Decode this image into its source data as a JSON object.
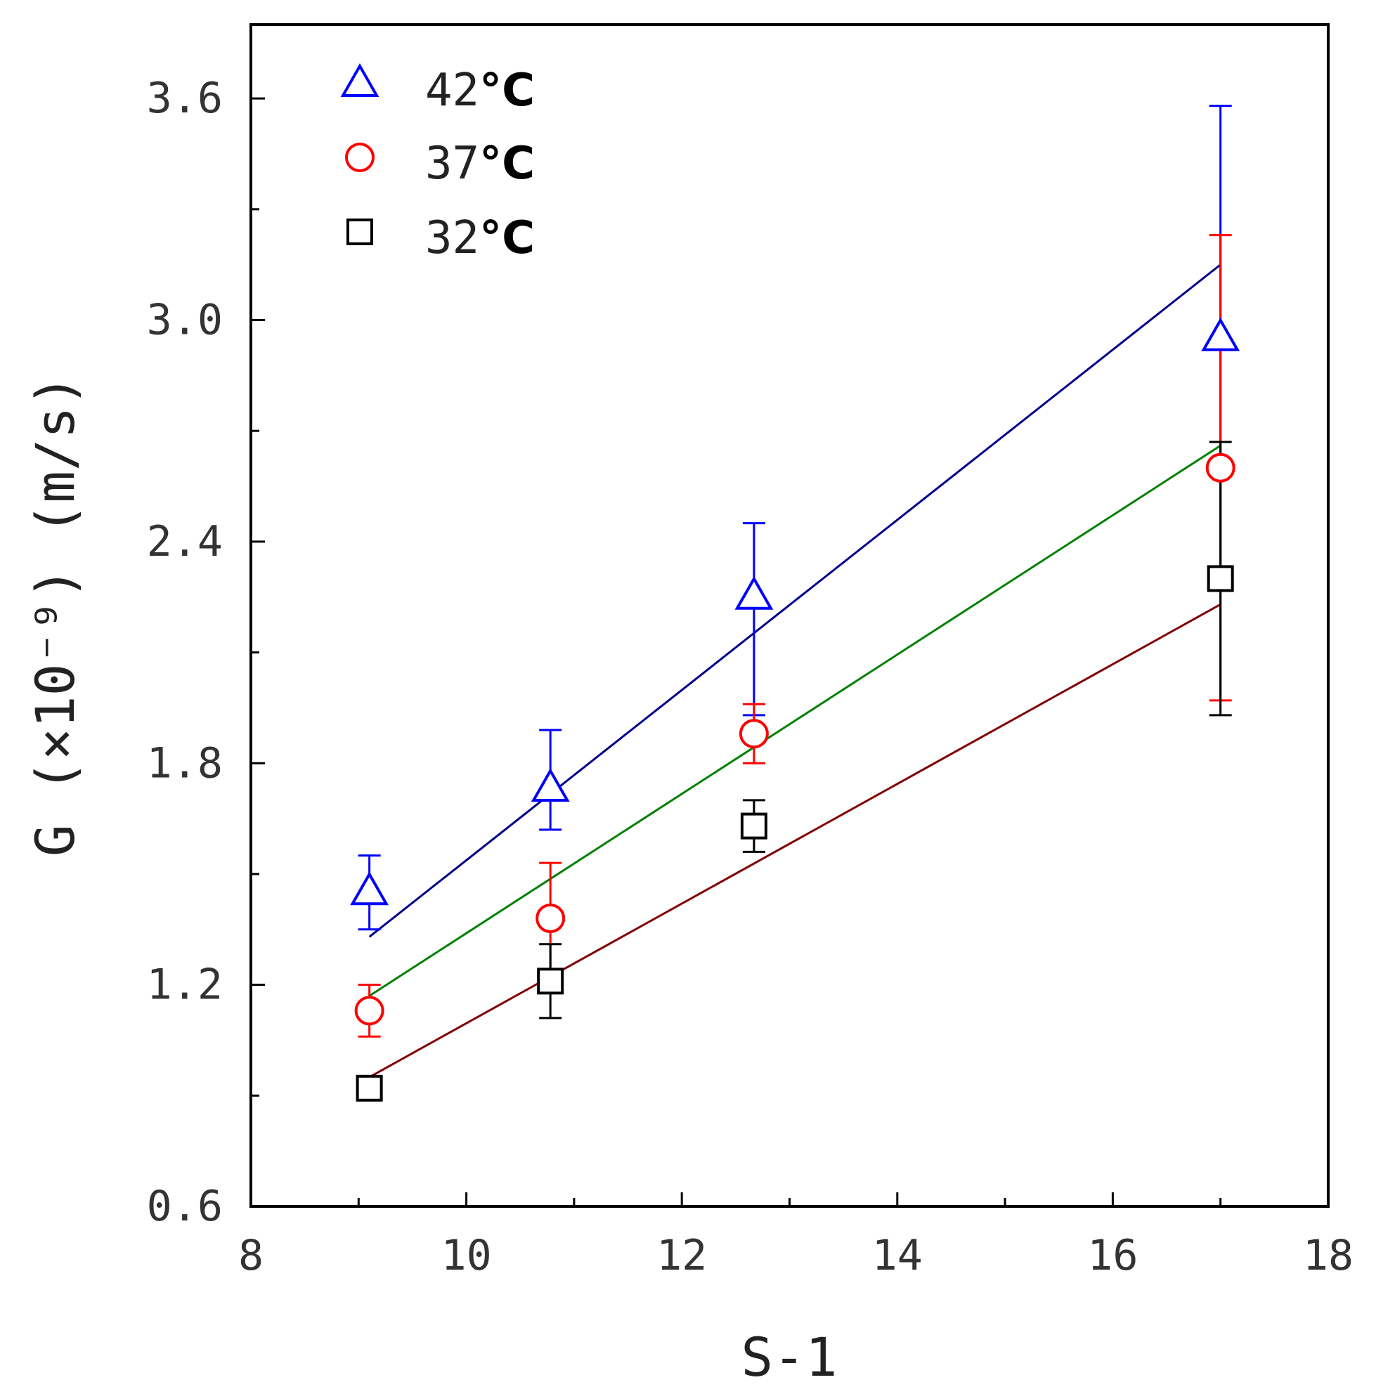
{
  "chart_data": {
    "type": "scatter",
    "xlabel": "S-1",
    "ylabel": "G  (×10⁻⁹) (m/s)",
    "xlim": [
      8,
      18
    ],
    "ylim": [
      0.6,
      3.8
    ],
    "x_ticks": [
      "8",
      "10",
      "12",
      "14",
      "16",
      "18"
    ],
    "y_ticks": [
      "0.6",
      "1.2",
      "1.8",
      "2.4",
      "3.0",
      "3.6"
    ],
    "legend_position": "top-left",
    "grid": false,
    "series": [
      {
        "name": "42°C",
        "marker": "triangle",
        "color": "#0000ff",
        "line_color": "#00008b",
        "points": [
          {
            "x": 9.1,
            "y": 1.45,
            "err_low": 0.1,
            "err_high": 0.1
          },
          {
            "x": 10.78,
            "y": 1.73,
            "err_low": 0.11,
            "err_high": 0.16
          },
          {
            "x": 12.67,
            "y": 2.25,
            "err_low": 0.32,
            "err_high": 0.2
          },
          {
            "x": 17.0,
            "y": 2.95,
            "err_low": 0.63,
            "err_high": 0.63
          }
        ],
        "fit": [
          [
            9.1,
            1.33
          ],
          [
            17.0,
            3.15
          ]
        ]
      },
      {
        "name": "37°C",
        "marker": "circle",
        "color": "#ff0000",
        "line_color": "#008000",
        "points": [
          {
            "x": 9.1,
            "y": 1.13,
            "err_low": 0.07,
            "err_high": 0.07
          },
          {
            "x": 10.78,
            "y": 1.38,
            "err_low": 0.15,
            "err_high": 0.15
          },
          {
            "x": 12.67,
            "y": 1.88,
            "err_low": 0.08,
            "err_high": 0.08
          },
          {
            "x": 17.0,
            "y": 2.6,
            "err_low": 0.63,
            "err_high": 0.63
          }
        ],
        "fit": [
          [
            9.1,
            1.17
          ],
          [
            17.0,
            2.66
          ]
        ]
      },
      {
        "name": "32°C",
        "marker": "square",
        "color": "#000000",
        "line_color": "#800000",
        "points": [
          {
            "x": 9.1,
            "y": 0.92,
            "err_low": 0,
            "err_high": 0
          },
          {
            "x": 10.78,
            "y": 1.21,
            "err_low": 0.1,
            "err_high": 0.1
          },
          {
            "x": 12.67,
            "y": 1.63,
            "err_low": 0.07,
            "err_high": 0.07
          },
          {
            "x": 17.0,
            "y": 2.3,
            "err_low": 0.37,
            "err_high": 0.37
          }
        ],
        "fit": [
          [
            9.1,
            0.95
          ],
          [
            17.0,
            2.23
          ]
        ]
      }
    ]
  }
}
